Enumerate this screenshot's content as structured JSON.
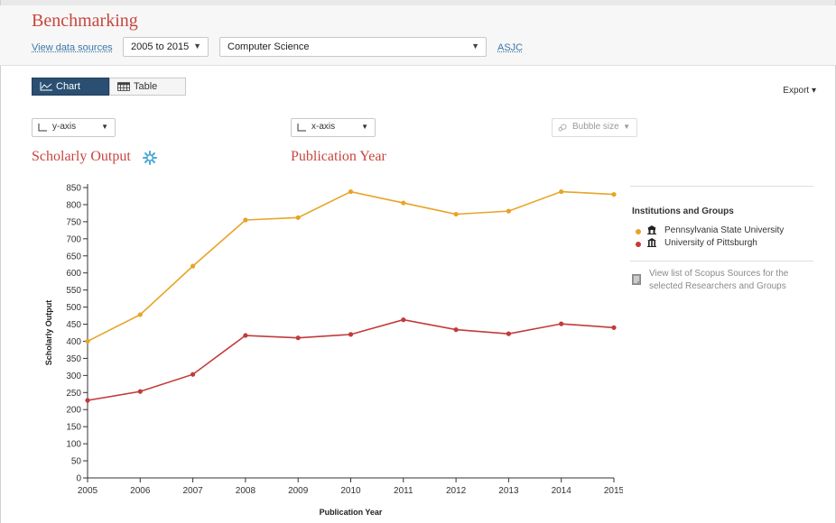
{
  "header": {
    "title": "Benchmarking",
    "view_sources": "View data sources",
    "year_range": "2005 to 2015",
    "subject": "Computer Science",
    "asjc": "ASJC"
  },
  "view_tabs": {
    "chart": "Chart",
    "table": "Table"
  },
  "export": "Export ▾",
  "axis_controls": {
    "y": "y-axis",
    "x": "x-axis",
    "bubble": "Bubble size"
  },
  "metric_titles": {
    "y": "Scholarly Output",
    "x": "Publication Year"
  },
  "legend": {
    "heading": "Institutions and Groups",
    "items": [
      {
        "label": "Pennsylvania State University",
        "color": "#e8a426"
      },
      {
        "label": "University of Pittsburgh",
        "color": "#c33a3a"
      }
    ],
    "scopus_link": "View list of Scopus Sources for the selected Researchers and Groups"
  },
  "colors": {
    "accent_title": "#c7463e",
    "link": "#3a76a8",
    "active_tab": "#2a4f72"
  },
  "chart_data": {
    "type": "line",
    "x": [
      2005,
      2006,
      2007,
      2008,
      2009,
      2010,
      2011,
      2012,
      2013,
      2014,
      2015
    ],
    "series": [
      {
        "name": "Pennsylvania State University",
        "color": "#e8a426",
        "values": [
          400,
          478,
          620,
          755,
          762,
          838,
          805,
          772,
          781,
          838,
          830
        ]
      },
      {
        "name": "University of Pittsburgh",
        "color": "#c33a3a",
        "values": [
          227,
          253,
          303,
          417,
          410,
          420,
          463,
          434,
          422,
          451,
          440
        ]
      }
    ],
    "xlabel": "Publication Year",
    "ylabel": "Scholarly Output",
    "ylim": [
      0,
      850
    ],
    "yticks": [
      0,
      50,
      100,
      150,
      200,
      250,
      300,
      350,
      400,
      450,
      500,
      550,
      600,
      650,
      700,
      750,
      800,
      850
    ],
    "grid": false
  }
}
